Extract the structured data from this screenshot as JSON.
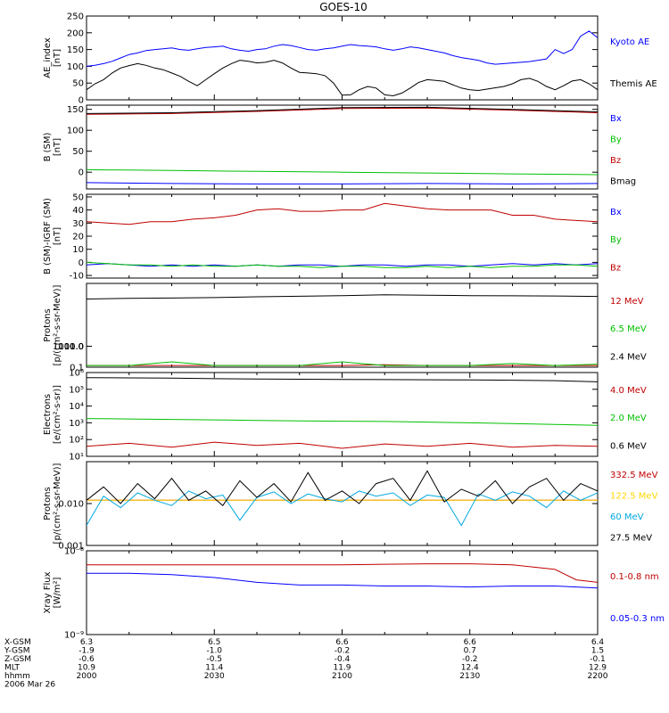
{
  "page_title": "GOES-10",
  "chart_data": [
    {
      "type": "line",
      "id": "ae",
      "ylabel": [
        "AE_index",
        "[nT]"
      ],
      "ylim": [
        0,
        250
      ],
      "yticks": [
        "0",
        "50",
        "100",
        "150",
        "200",
        "250"
      ],
      "x": [
        0.0,
        2.0,
        4.0,
        6.0,
        8.0,
        10.0,
        12.0,
        14.0,
        16.0,
        18.0,
        20.0,
        22.0,
        24.0,
        26.0,
        28.0,
        30.0,
        32.0,
        34.0,
        36.0,
        38.0,
        40.0,
        42.0,
        44.0,
        46.0,
        48.0,
        50.0,
        52.0,
        54.0,
        56.0,
        58.0,
        60.0,
        62.0,
        64.0,
        66.0,
        68.0,
        70.0,
        72.0,
        74.0,
        76.0,
        78.0,
        80.0,
        82.0,
        84.0,
        86.0,
        88.0,
        90.0,
        92.0,
        94.0,
        96.0,
        98.0,
        100.0,
        102.0,
        104.0,
        106.0,
        108.0,
        110.0,
        112.0,
        114.0,
        116.0,
        118.0,
        120.0
      ],
      "series": [
        {
          "name": "Kyoto AE",
          "color": "#0000ff",
          "values": [
            100,
            103,
            108,
            115,
            125,
            135,
            140,
            147,
            150,
            152,
            155,
            150,
            148,
            152,
            156,
            158,
            160,
            152,
            148,
            145,
            150,
            152,
            160,
            165,
            162,
            156,
            150,
            148,
            152,
            155,
            160,
            165,
            162,
            160,
            158,
            152,
            148,
            152,
            158,
            155,
            150,
            145,
            140,
            132,
            126,
            122,
            118,
            110,
            106,
            108,
            110,
            112,
            114,
            118,
            122,
            150,
            138,
            150,
            190,
            205,
            185
          ]
        },
        {
          "name": "Themis AE",
          "color": "#000000",
          "values": [
            30,
            48,
            60,
            80,
            95,
            102,
            108,
            103,
            95,
            90,
            80,
            70,
            55,
            42,
            60,
            78,
            95,
            108,
            118,
            115,
            110,
            112,
            118,
            110,
            95,
            82,
            80,
            78,
            72,
            50,
            14,
            15,
            30,
            40,
            35,
            15,
            12,
            20,
            35,
            52,
            60,
            58,
            55,
            45,
            35,
            30,
            28,
            32,
            36,
            40,
            48,
            60,
            64,
            55,
            40,
            30,
            42,
            56,
            60,
            48,
            30
          ]
        }
      ]
    },
    {
      "type": "line",
      "id": "b_sm",
      "ylabel": [
        "B (SM)",
        "[nT]"
      ],
      "ylim": [
        -40,
        160
      ],
      "yticks": [
        "-50",
        "0",
        "50",
        "100",
        "150"
      ],
      "x": [
        0,
        20,
        40,
        60,
        80,
        100,
        120
      ],
      "series": [
        {
          "name": "Bx",
          "color": "#0000ff",
          "values": [
            -25,
            -27,
            -28,
            -28,
            -27,
            -28,
            -27
          ]
        },
        {
          "name": "By",
          "color": "#00c000",
          "values": [
            6,
            4,
            2,
            0,
            -2,
            -4,
            -6
          ]
        },
        {
          "name": "Bz",
          "color": "#c00000",
          "values": [
            138,
            140,
            145,
            152,
            153,
            148,
            142
          ]
        },
        {
          "name": "Bmag",
          "color": "#000000",
          "values": [
            140,
            142,
            147,
            154,
            155,
            150,
            144
          ]
        }
      ]
    },
    {
      "type": "line",
      "id": "b_igrf",
      "ylabel": [
        "B (SM)-IGRF (SM)",
        "[nT]"
      ],
      "ylim": [
        -12,
        52
      ],
      "yticks": [
        "-10",
        "0",
        "10",
        "20",
        "30",
        "40",
        "50"
      ],
      "x": [
        0,
        5,
        10,
        15,
        20,
        25,
        30,
        35,
        40,
        45,
        50,
        55,
        60,
        65,
        70,
        75,
        80,
        85,
        90,
        95,
        100,
        105,
        110,
        115,
        120
      ],
      "series": [
        {
          "name": "Bx",
          "color": "#0000ff",
          "values": [
            -2,
            -1,
            -2,
            -3,
            -2,
            -3,
            -2,
            -3,
            -2,
            -3,
            -2,
            -2,
            -3,
            -2,
            -2,
            -3,
            -2,
            -2,
            -3,
            -2,
            -1,
            -2,
            -1,
            -2,
            -1
          ]
        },
        {
          "name": "By",
          "color": "#00c000",
          "values": [
            0,
            -1,
            -2,
            -2,
            -3,
            -2,
            -3,
            -3,
            -2,
            -3,
            -3,
            -4,
            -3,
            -3,
            -4,
            -4,
            -3,
            -4,
            -3,
            -4,
            -3,
            -3,
            -2,
            -2,
            -3
          ]
        },
        {
          "name": "Bz",
          "color": "#c00000",
          "values": [
            31,
            30,
            29,
            31,
            31,
            33,
            34,
            36,
            40,
            41,
            39,
            39,
            40,
            40,
            45,
            43,
            41,
            40,
            40,
            40,
            36,
            36,
            33,
            32,
            31
          ]
        }
      ]
    },
    {
      "type": "line",
      "id": "protons_hi",
      "ylabel": [
        "Protons",
        "[p/(cm²-s-sr-MeV)]"
      ],
      "yscale": "log",
      "ylim": [
        0.1,
        1000
      ],
      "yticks": [
        "0.1",
        "1.0",
        "10.0",
        "100.0",
        "1000.0"
      ],
      "x": [
        0,
        10,
        20,
        30,
        40,
        50,
        60,
        70,
        80,
        90,
        100,
        110,
        120
      ],
      "series": [
        {
          "name": "12 MeV",
          "color": "#c00000",
          "values": [
            0.12,
            0.12,
            0.12,
            0.12,
            0.12,
            0.12,
            0.12,
            0.13,
            0.12,
            0.12,
            0.12,
            0.12,
            0.12
          ]
        },
        {
          "name": "6.5 MeV",
          "color": "#00c000",
          "values": [
            0.12,
            0.12,
            0.18,
            0.12,
            0.12,
            0.12,
            0.18,
            0.12,
            0.12,
            0.12,
            0.15,
            0.12,
            0.14
          ]
        },
        {
          "name": "2.4 MeV",
          "color": "#000000",
          "values": [
            180,
            195,
            200,
            210,
            230,
            245,
            260,
            285,
            275,
            260,
            255,
            250,
            240
          ]
        }
      ]
    },
    {
      "type": "line",
      "id": "electrons",
      "ylabel": [
        "Electrons",
        "[e/(cm²-s-sr)]"
      ],
      "yscale": "log",
      "ylim": [
        10,
        1000000
      ],
      "yticks": [
        "10¹",
        "10²",
        "10³",
        "10⁴",
        "10⁵",
        "10⁶"
      ],
      "x": [
        0,
        10,
        20,
        30,
        40,
        50,
        60,
        70,
        80,
        90,
        100,
        110,
        120
      ],
      "series": [
        {
          "name": "4.0 MeV",
          "color": "#c00000",
          "values": [
            40,
            60,
            35,
            70,
            45,
            60,
            30,
            55,
            40,
            60,
            35,
            45,
            40
          ]
        },
        {
          "name": "2.0 MeV",
          "color": "#00c000",
          "values": [
            1800,
            1700,
            1600,
            1500,
            1400,
            1300,
            1250,
            1200,
            1100,
            1000,
            900,
            800,
            700
          ]
        },
        {
          "name": "0.6 MeV",
          "color": "#000000",
          "values": [
            500000,
            480000,
            460000,
            430000,
            410000,
            400000,
            390000,
            380000,
            370000,
            360000,
            350000,
            330000,
            280000
          ]
        }
      ]
    },
    {
      "type": "line",
      "id": "protons_hi2",
      "ylabel": [
        "Protons",
        "[p/(cm²-s-sr-MeV)]"
      ],
      "yscale": "log",
      "ylim": [
        0.001,
        0.1
      ],
      "yticks": [
        "0.001",
        "0.010"
      ],
      "x": [
        0,
        4,
        8,
        12,
        16,
        20,
        24,
        28,
        32,
        36,
        40,
        44,
        48,
        52,
        56,
        60,
        64,
        68,
        72,
        76,
        80,
        84,
        88,
        92,
        96,
        100,
        104,
        108,
        112,
        116,
        120
      ],
      "series": [
        {
          "name": "332.5 MeV",
          "color": "#c00000",
          "values": [
            0.012,
            0.012,
            0.012,
            0.012,
            0.012,
            0.012,
            0.012,
            0.012,
            0.012,
            0.012,
            0.012,
            0.012,
            0.012,
            0.012,
            0.012,
            0.012,
            0.012,
            0.012,
            0.012,
            0.012,
            0.012,
            0.012,
            0.012,
            0.012,
            0.012,
            0.012,
            0.012,
            0.012,
            0.012,
            0.012,
            0.012
          ]
        },
        {
          "name": "122.5 MeV",
          "color": "#ffd800",
          "values": [
            0.012,
            0.012,
            0.012,
            0.012,
            0.012,
            0.012,
            0.012,
            0.012,
            0.012,
            0.012,
            0.012,
            0.012,
            0.012,
            0.012,
            0.012,
            0.012,
            0.012,
            0.012,
            0.012,
            0.012,
            0.012,
            0.012,
            0.012,
            0.012,
            0.012,
            0.012,
            0.012,
            0.012,
            0.012,
            0.012,
            0.012
          ]
        },
        {
          "name": "60 MeV",
          "color": "#00a8e0",
          "values": [
            0.003,
            0.015,
            0.008,
            0.018,
            0.012,
            0.009,
            0.02,
            0.013,
            0.016,
            0.004,
            0.014,
            0.019,
            0.01,
            0.017,
            0.013,
            0.011,
            0.02,
            0.015,
            0.018,
            0.009,
            0.016,
            0.014,
            0.003,
            0.017,
            0.012,
            0.019,
            0.015,
            0.008,
            0.02,
            0.012,
            0.018
          ]
        },
        {
          "name": "27.5 MeV",
          "color": "#000000",
          "values": [
            0.012,
            0.025,
            0.01,
            0.03,
            0.013,
            0.04,
            0.012,
            0.02,
            0.009,
            0.035,
            0.014,
            0.03,
            0.011,
            0.055,
            0.012,
            0.02,
            0.01,
            0.03,
            0.04,
            0.012,
            0.06,
            0.011,
            0.022,
            0.015,
            0.035,
            0.01,
            0.025,
            0.04,
            0.012,
            0.03,
            0.02
          ]
        }
      ]
    },
    {
      "type": "line",
      "id": "xray",
      "ylabel": [
        "Xray Flux",
        "[W/m²]"
      ],
      "yscale": "log",
      "ylim": [
        1e-09,
        1e-08
      ],
      "yticks": [
        "10⁻⁹",
        "10⁻⁸"
      ],
      "x": [
        0,
        10,
        20,
        30,
        40,
        50,
        60,
        70,
        80,
        90,
        100,
        110,
        115,
        120
      ],
      "series": [
        {
          "name": "0.1-0.8 nm",
          "color": "#c00000",
          "values": [
            6.8e-09,
            6.8e-09,
            6.8e-09,
            6.8e-09,
            6.8e-09,
            6.8e-09,
            6.8e-09,
            6.9e-09,
            7e-09,
            7e-09,
            6.8e-09,
            6e-09,
            4.5e-09,
            4.2e-09
          ]
        },
        {
          "name": "0.05-0.3 nm",
          "color": "#0000ff",
          "values": [
            5.4e-09,
            5.4e-09,
            5.2e-09,
            4.8e-09,
            4.2e-09,
            3.9e-09,
            3.9e-09,
            3.8e-09,
            3.8e-09,
            3.7e-09,
            3.8e-09,
            3.8e-09,
            3.7e-09,
            3.6e-09
          ]
        }
      ]
    }
  ],
  "x_axis": {
    "rows": [
      {
        "label": "X-GSM",
        "values": [
          "6.3",
          "6.5",
          "6.6",
          "6.6",
          "6.4"
        ]
      },
      {
        "label": "Y-GSM",
        "values": [
          "-1.9",
          "-1.0",
          "-0.2",
          "0.7",
          "1.5"
        ]
      },
      {
        "label": "Z-GSM",
        "values": [
          "-0.6",
          "-0.5",
          "-0.4",
          "-0.2",
          "-0.1"
        ]
      },
      {
        "label": "MLT",
        "values": [
          "10.9",
          "11.4",
          "11.9",
          "12.4",
          "12.9"
        ]
      },
      {
        "label": "hhmm",
        "values": [
          "2000",
          "2030",
          "2100",
          "2130",
          "2200"
        ]
      }
    ],
    "date": "2006 Mar 26"
  }
}
